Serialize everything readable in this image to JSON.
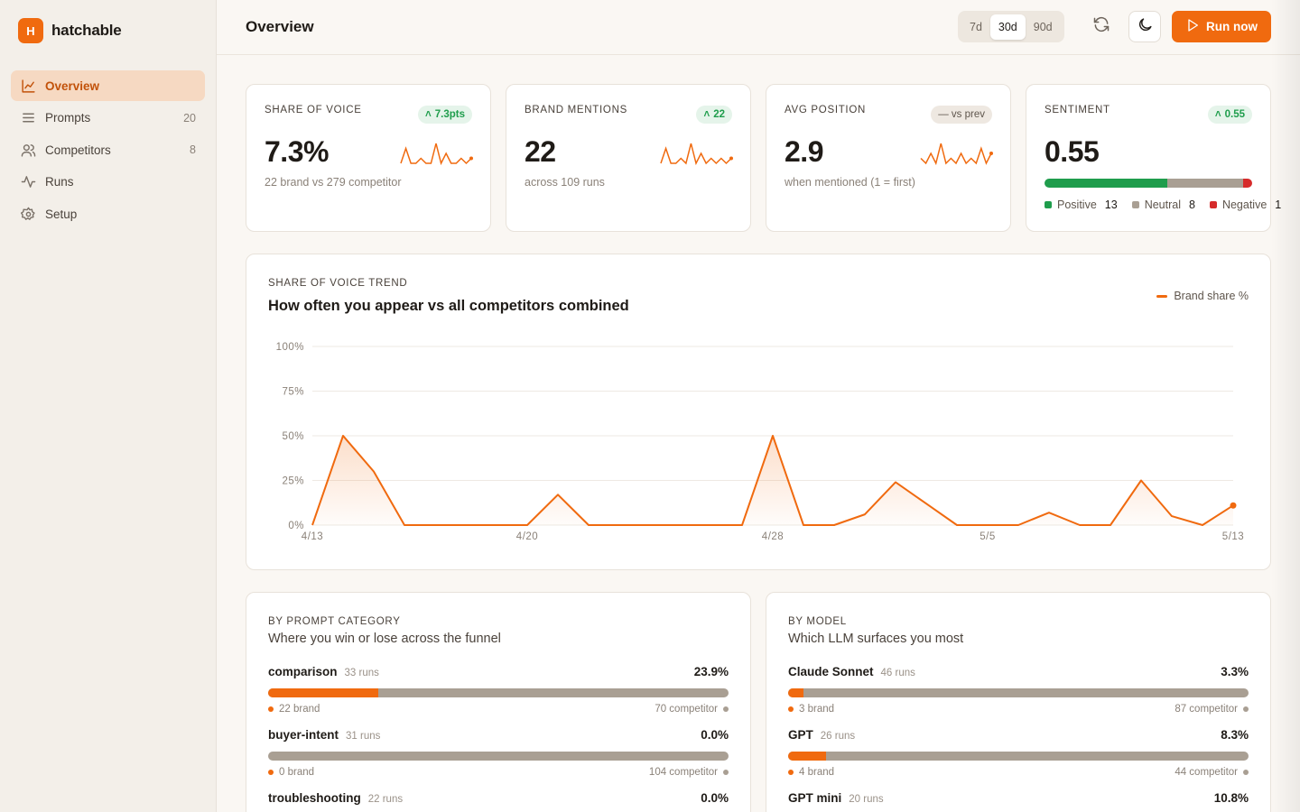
{
  "app": {
    "logo_letter": "H",
    "name": "hatchable"
  },
  "sidebar": {
    "items": [
      {
        "label": "Overview",
        "count": "",
        "icon": "line-chart-icon",
        "active": true
      },
      {
        "label": "Prompts",
        "count": "20",
        "icon": "list-icon",
        "active": false
      },
      {
        "label": "Competitors",
        "count": "8",
        "icon": "users-icon",
        "active": false
      },
      {
        "label": "Runs",
        "count": "",
        "icon": "activity-icon",
        "active": false
      },
      {
        "label": "Setup",
        "count": "",
        "icon": "gear-icon",
        "active": false
      }
    ]
  },
  "header": {
    "title": "Overview",
    "ranges": [
      "7d",
      "30d",
      "90d"
    ],
    "selected_range": "30d",
    "run_label": "Run now"
  },
  "colors": {
    "accent": "#f06a0f",
    "positive": "#1f9d4c",
    "neutral": "#a99f93",
    "negative": "#d62b2b"
  },
  "kpis": [
    {
      "label": "SHARE OF VOICE",
      "badge": "7.3pts",
      "badge_up": true,
      "value": "7.3%",
      "sub": "22 brand vs 279 competitor"
    },
    {
      "label": "BRAND MENTIONS",
      "badge": "22",
      "badge_up": true,
      "value": "22",
      "sub": "across 109 runs"
    },
    {
      "label": "AVG POSITION",
      "badge": "— vs prev",
      "badge_up": false,
      "value": "2.9",
      "sub": "when mentioned (1 = first)"
    },
    {
      "label": "SENTIMENT",
      "badge": "0.55",
      "badge_up": true,
      "value": "0.55",
      "sub": ""
    }
  ],
  "sentiment": {
    "positive_label": "Positive",
    "positive": 13,
    "neutral_label": "Neutral",
    "neutral": 8,
    "negative_label": "Negative",
    "negative": 1
  },
  "trend": {
    "section_label": "SHARE OF VOICE TREND",
    "title": "How often you appear vs all competitors combined",
    "legend": "Brand share %"
  },
  "chart_data": {
    "type": "area",
    "series": [
      {
        "name": "Brand share %",
        "values": [
          0,
          50,
          30,
          0,
          0,
          0,
          0,
          0,
          17,
          0,
          0,
          0,
          0,
          0,
          0,
          50,
          0,
          0,
          6,
          24,
          12,
          0,
          0,
          0,
          7,
          0,
          0,
          25,
          5,
          0,
          11
        ]
      }
    ],
    "x": [
      "4/13",
      "4/14",
      "4/15",
      "4/16",
      "4/17",
      "4/18",
      "4/19",
      "4/20",
      "4/21",
      "4/22",
      "4/23",
      "4/24",
      "4/25",
      "4/26",
      "4/27",
      "4/28",
      "4/29",
      "4/30",
      "5/1",
      "5/2",
      "5/3",
      "5/4",
      "5/5",
      "5/6",
      "5/7",
      "5/8",
      "5/9",
      "5/10",
      "5/11",
      "5/12",
      "5/13"
    ],
    "x_tick_labels": [
      "4/13",
      "4/20",
      "4/28",
      "5/5",
      "5/13"
    ],
    "y_tick_labels": [
      "100%",
      "75%",
      "50%",
      "25%",
      "0%"
    ],
    "ylim": [
      0,
      100
    ],
    "grid": true,
    "legend_position": "top-right"
  },
  "sparklines": [
    [
      0,
      3,
      0,
      0,
      1,
      0,
      0,
      4,
      0,
      2,
      0,
      0,
      1,
      0,
      1
    ],
    [
      0,
      3,
      0,
      0,
      1,
      0,
      4,
      0,
      2,
      0,
      1,
      0,
      1,
      0,
      1
    ],
    [
      1,
      0,
      2,
      0,
      4,
      0,
      1,
      0,
      2,
      0,
      1,
      0,
      3,
      0,
      2
    ],
    []
  ],
  "by_category": {
    "section_label": "BY PROMPT CATEGORY",
    "subtitle": "Where you win or lose across the funnel",
    "rows": [
      {
        "name": "comparison",
        "runs": "33 runs",
        "pct": "23.9%",
        "share": 0.239,
        "brand": "22 brand",
        "competitor": "70 competitor"
      },
      {
        "name": "buyer-intent",
        "runs": "31 runs",
        "pct": "0.0%",
        "share": 0.0,
        "brand": "0 brand",
        "competitor": "104 competitor"
      },
      {
        "name": "troubleshooting",
        "runs": "22 runs",
        "pct": "0.0%",
        "share": 0.0,
        "brand": "",
        "competitor": ""
      }
    ]
  },
  "by_model": {
    "section_label": "BY MODEL",
    "subtitle": "Which LLM surfaces you most",
    "rows": [
      {
        "name": "Claude Sonnet",
        "runs": "46 runs",
        "pct": "3.3%",
        "share": 0.033,
        "brand": "3 brand",
        "competitor": "87 competitor"
      },
      {
        "name": "GPT",
        "runs": "26 runs",
        "pct": "8.3%",
        "share": 0.083,
        "brand": "4 brand",
        "competitor": "44 competitor"
      },
      {
        "name": "GPT mini",
        "runs": "20 runs",
        "pct": "10.8%",
        "share": 0.108,
        "brand": "",
        "competitor": ""
      }
    ]
  }
}
